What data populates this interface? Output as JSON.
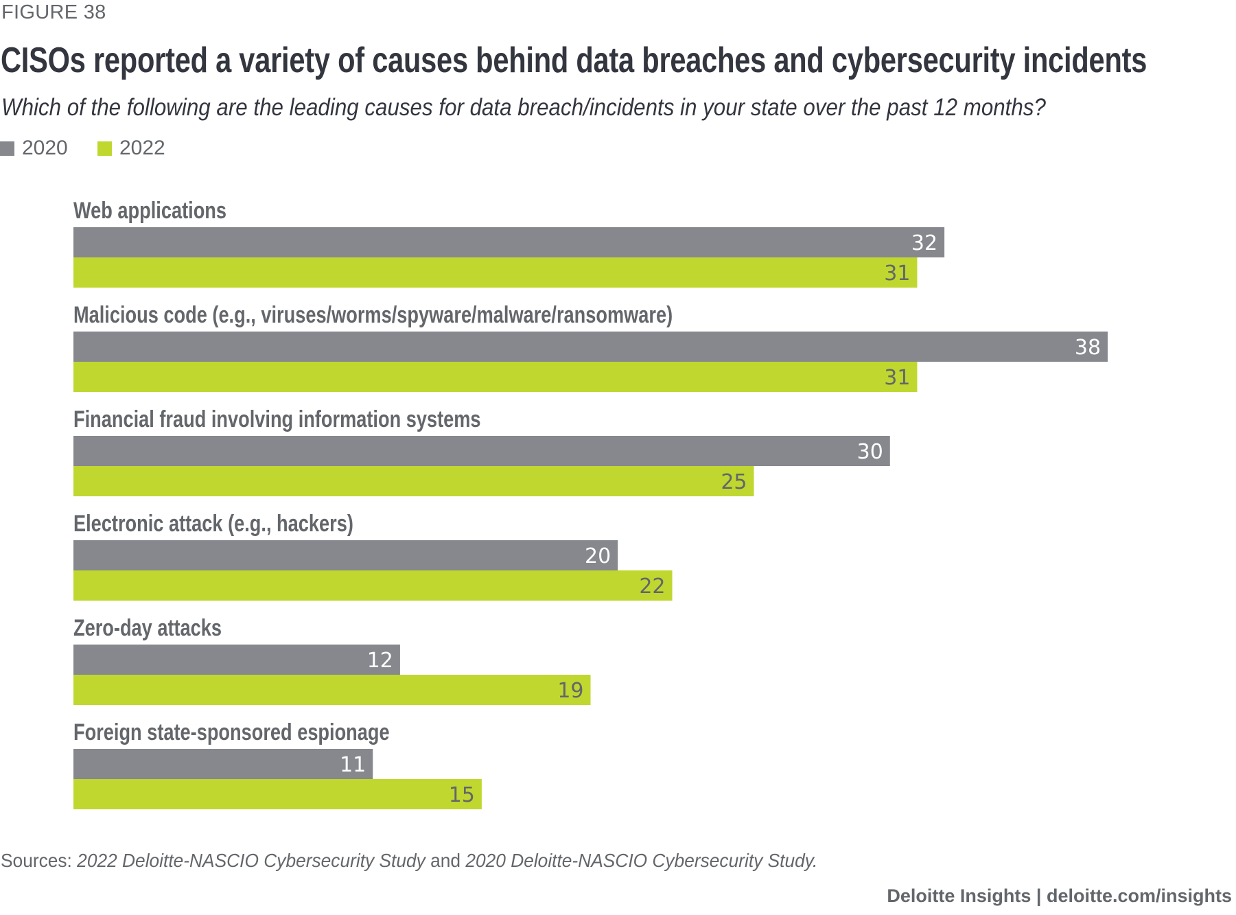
{
  "figure_label": "FIGURE 38",
  "colors": {
    "2020": "#86888d",
    "2022": "#c0d72f",
    "text": "#63666a",
    "title": "#33353f"
  },
  "chart_data": {
    "type": "bar",
    "orientation": "horizontal",
    "title": "CISOs reported a variety of causes behind data breaches and cybersecurity incidents",
    "subtitle": "Which of the following are the leading causes for data breach/incidents in your state over the past 12 months?",
    "xlabel": "",
    "ylabel": "",
    "grid": false,
    "legend_position": "top-left",
    "xlim": [
      0,
      42
    ],
    "categories": [
      "Web applications",
      "Malicious code (e.g., viruses/worms/spyware/malware/ransomware)",
      "Financial fraud involving information systems",
      "Electronic attack (e.g., hackers)",
      "Zero-day attacks",
      "Foreign state-sponsored espionage"
    ],
    "series": [
      {
        "name": "2020",
        "color": "#86888d",
        "label_color": "#ffffff",
        "values": [
          32,
          38,
          30,
          20,
          12,
          11
        ]
      },
      {
        "name": "2022",
        "color": "#c0d72f",
        "label_color": "#63666a",
        "values": [
          31,
          31,
          25,
          22,
          19,
          15
        ]
      }
    ]
  },
  "legend": [
    {
      "label": "2020",
      "color": "#86888d"
    },
    {
      "label": "2022",
      "color": "#c0d72f"
    }
  ],
  "sources": {
    "prefix": "Sources: ",
    "study_2022": "2022 Deloitte-NASCIO Cybersecurity Study",
    "conjunction": " and ",
    "study_2020": "2020 Deloitte-NASCIO Cybersecurity Study."
  },
  "footer": "Deloitte Insights | deloitte.com/insights"
}
